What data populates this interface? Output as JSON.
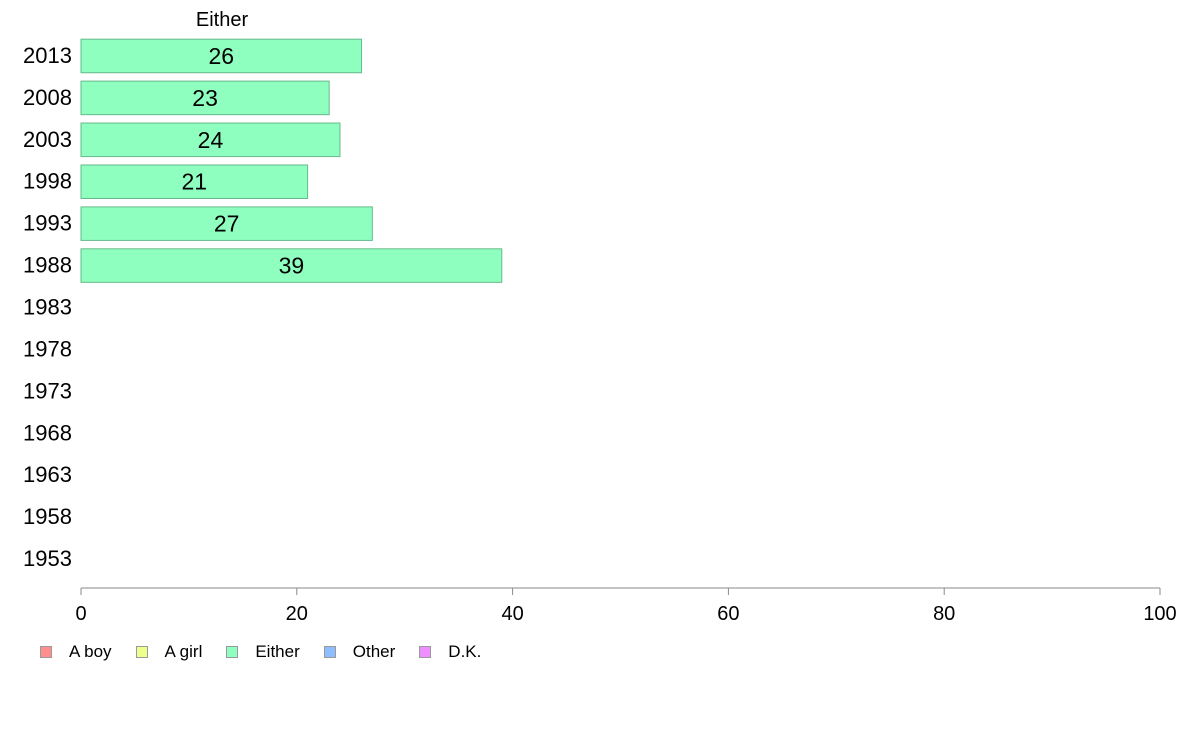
{
  "chart_data": {
    "type": "bar",
    "orientation": "horizontal",
    "title": "Either",
    "categories": [
      "2013",
      "2008",
      "2003",
      "1998",
      "1993",
      "1988",
      "1983",
      "1978",
      "1973",
      "1968",
      "1963",
      "1958",
      "1953"
    ],
    "series": [
      {
        "name": "A boy",
        "color": "#ff8e8e",
        "values": [
          null,
          null,
          null,
          null,
          null,
          null,
          null,
          null,
          null,
          null,
          null,
          null,
          null
        ]
      },
      {
        "name": "A girl",
        "color": "#eeff8e",
        "values": [
          null,
          null,
          null,
          null,
          null,
          null,
          null,
          null,
          null,
          null,
          null,
          null,
          null
        ]
      },
      {
        "name": "Either",
        "color": "#8effbe",
        "values": [
          26,
          23,
          24,
          21,
          27,
          39,
          null,
          null,
          null,
          null,
          null,
          null,
          null
        ]
      },
      {
        "name": "Other",
        "color": "#8ebeff",
        "values": [
          null,
          null,
          null,
          null,
          null,
          null,
          null,
          null,
          null,
          null,
          null,
          null,
          null
        ]
      },
      {
        "name": "D.K.",
        "color": "#ee8eff",
        "values": [
          null,
          null,
          null,
          null,
          null,
          null,
          null,
          null,
          null,
          null,
          null,
          null,
          null
        ]
      }
    ],
    "shown_series": "Either",
    "xlim": [
      0,
      100
    ],
    "xticks": [
      "0",
      "20",
      "40",
      "60",
      "80",
      "100"
    ],
    "grid": false,
    "legend_position": "bottom-left",
    "data_labels": true
  }
}
